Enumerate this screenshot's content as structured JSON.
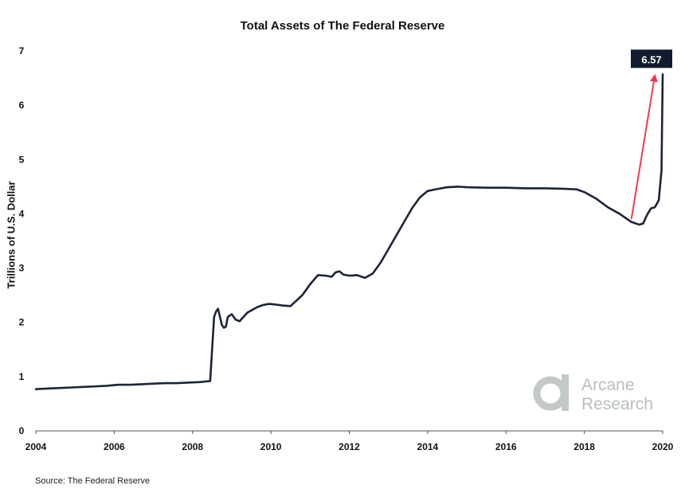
{
  "chart_data": {
    "type": "line",
    "title": "Total Assets of The Federal Reserve",
    "xlabel": "",
    "ylabel": "Trillions of U.S. Dollar",
    "xlim": [
      2004,
      2020
    ],
    "ylim": [
      0,
      7
    ],
    "x_ticks": [
      "2004",
      "2006",
      "2008",
      "2010",
      "2012",
      "2014",
      "2016",
      "2018",
      "2020"
    ],
    "y_ticks": [
      "0",
      "1",
      "2",
      "3",
      "4",
      "5",
      "6",
      "7"
    ],
    "grid": false,
    "series": [
      {
        "name": "Total Assets",
        "color": "#1b2438",
        "x": [
          2004.0,
          2004.3,
          2004.6,
          2004.9,
          2005.2,
          2005.5,
          2005.8,
          2006.1,
          2006.4,
          2006.7,
          2007.0,
          2007.3,
          2007.6,
          2007.9,
          2008.2,
          2008.45,
          2008.55,
          2008.6,
          2008.65,
          2008.75,
          2008.8,
          2008.85,
          2008.9,
          2009.0,
          2009.1,
          2009.2,
          2009.3,
          2009.4,
          2009.5,
          2009.65,
          2009.8,
          2009.95,
          2010.1,
          2010.3,
          2010.5,
          2010.65,
          2010.8,
          2011.0,
          2011.2,
          2011.4,
          2011.55,
          2011.65,
          2011.75,
          2011.85,
          2012.0,
          2012.2,
          2012.4,
          2012.6,
          2012.8,
          2013.0,
          2013.2,
          2013.4,
          2013.6,
          2013.8,
          2014.0,
          2014.2,
          2014.5,
          2014.8,
          2015.0,
          2015.5,
          2016.0,
          2016.5,
          2017.0,
          2017.5,
          2017.8,
          2018.0,
          2018.3,
          2018.6,
          2018.9,
          2019.2,
          2019.4,
          2019.5,
          2019.6,
          2019.7,
          2019.8,
          2019.9,
          2019.97,
          2020.0
        ],
        "values": [
          0.77,
          0.78,
          0.79,
          0.8,
          0.81,
          0.82,
          0.83,
          0.85,
          0.85,
          0.86,
          0.87,
          0.88,
          0.88,
          0.89,
          0.9,
          0.92,
          2.1,
          2.2,
          2.25,
          1.95,
          1.9,
          1.92,
          2.1,
          2.15,
          2.05,
          2.02,
          2.1,
          2.18,
          2.22,
          2.28,
          2.32,
          2.34,
          2.33,
          2.31,
          2.3,
          2.4,
          2.5,
          2.7,
          2.87,
          2.86,
          2.84,
          2.92,
          2.94,
          2.88,
          2.86,
          2.87,
          2.82,
          2.9,
          3.1,
          3.35,
          3.6,
          3.85,
          4.1,
          4.3,
          4.42,
          4.45,
          4.49,
          4.5,
          4.49,
          4.48,
          4.48,
          4.47,
          4.47,
          4.46,
          4.45,
          4.4,
          4.28,
          4.12,
          4.0,
          3.85,
          3.8,
          3.82,
          3.98,
          4.1,
          4.12,
          4.25,
          4.8,
          6.57
        ]
      }
    ],
    "annotations": [
      {
        "label": "6.57",
        "x": 2020.0,
        "y": 6.57,
        "kind": "callout"
      },
      {
        "kind": "arrow",
        "from_x": 2019.2,
        "from_y": 3.9,
        "to_x": 2019.8,
        "to_y": 6.55,
        "color": "#ee3b52"
      }
    ],
    "source": "Source: The Federal Reserve",
    "watermark": {
      "line1": "Arcane",
      "line2": "Research"
    }
  }
}
